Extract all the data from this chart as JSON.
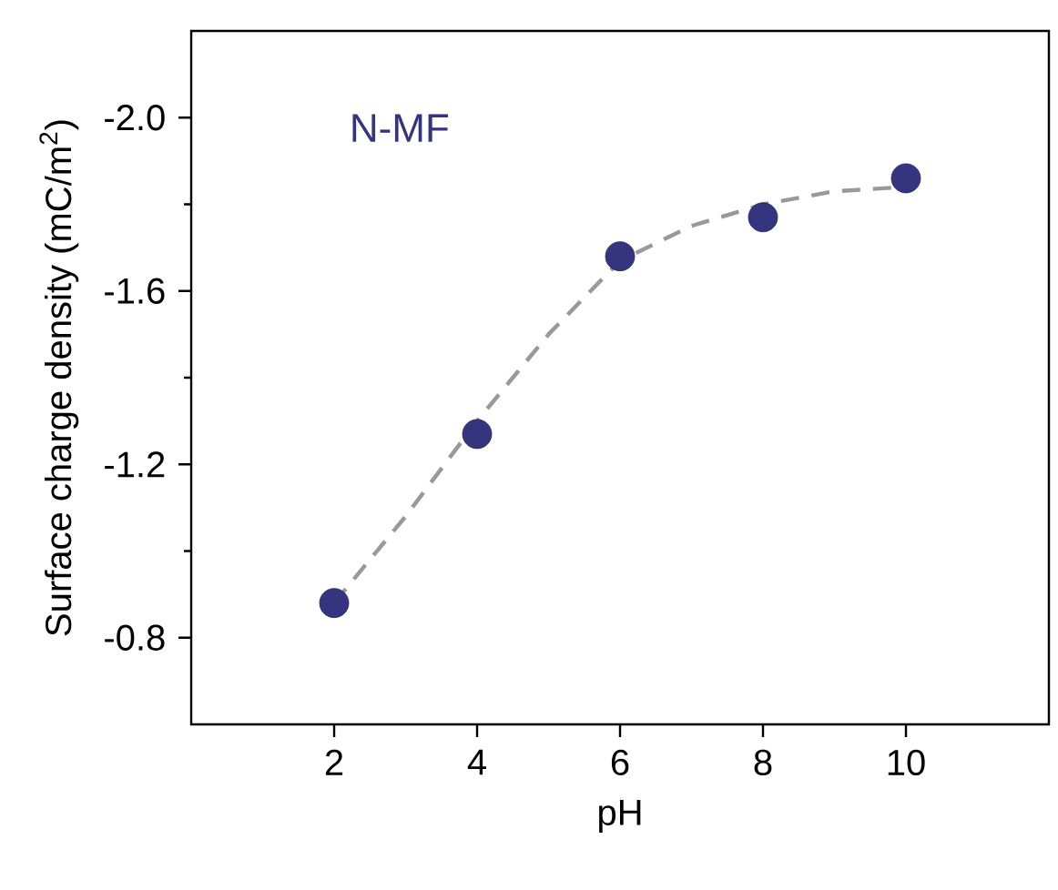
{
  "chart_data": {
    "type": "scatter",
    "xlabel": "pH",
    "ylabel": "Surface charge density (mC/m$^{2}$)",
    "annotations": [
      "N-MF"
    ],
    "x": [
      2,
      4,
      6,
      8,
      10
    ],
    "series": [
      {
        "color": "#35357f",
        "marker": "circle",
        "values": [
          -0.88,
          -1.27,
          -1.68,
          -1.77,
          -1.86
        ]
      },
      {
        "type": "line",
        "color": "#999999",
        "line_style": "dashed",
        "marker": "none",
        "x": [
          2,
          3,
          4,
          5,
          6,
          7,
          8,
          9,
          10
        ],
        "values": [
          -0.88,
          -1.08,
          -1.3,
          -1.5,
          -1.67,
          -1.75,
          -1.8,
          -1.83,
          -1.84
        ]
      }
    ],
    "xlim": [
      0,
      12
    ],
    "xticks": [
      2,
      4,
      6,
      8,
      10
    ],
    "ylim": [
      -0.6,
      -2.2
    ],
    "yticks": [
      {
        "value": -2.0,
        "label": "-2.0"
      },
      {
        "value": -1.6,
        "label": "-1.6"
      },
      {
        "value": -1.2,
        "label": "-1.2"
      },
      {
        "value": -0.8,
        "label": "-0.8"
      }
    ],
    "grid": false
  }
}
